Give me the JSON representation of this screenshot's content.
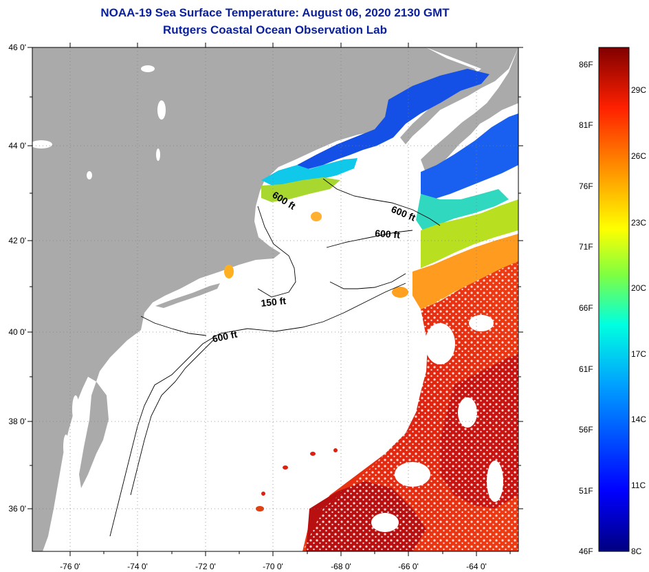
{
  "header": {
    "title": "NOAA-19 Sea Surface Temperature:  August 06, 2020 2130 GMT",
    "subtitle": "Rutgers Coastal Ocean Observation Lab"
  },
  "map": {
    "lon_ticks": [
      "-76 0'",
      "-74 0'",
      "-72 0'",
      "-70 0'",
      "-68 0'",
      "-66 0'",
      "-64 0'"
    ],
    "lat_ticks": [
      "46 0'",
      "44 0'",
      "42 0'",
      "40 0'",
      "38 0'",
      "36 0'"
    ],
    "contours": [
      {
        "label": "600 ft"
      },
      {
        "label": "600 ft"
      },
      {
        "label": "600 ft"
      },
      {
        "label": "150 ft"
      },
      {
        "label": "600 ft"
      }
    ]
  },
  "colorbar": {
    "fahrenheit": [
      "86F",
      "81F",
      "76F",
      "71F",
      "66F",
      "61F",
      "56F",
      "51F",
      "46F"
    ],
    "celsius": [
      "29C",
      "26C",
      "23C",
      "20C",
      "17C",
      "14C",
      "11C",
      "8C"
    ]
  },
  "colors": {
    "land": "#aaaaaa",
    "ocean": "#ffffff",
    "title": "#0a1f9c",
    "cold": "#1040e0",
    "cool": "#00c8e8",
    "mild": "#c0e020",
    "warm": "#ff8800",
    "hot": "#dd1010"
  }
}
